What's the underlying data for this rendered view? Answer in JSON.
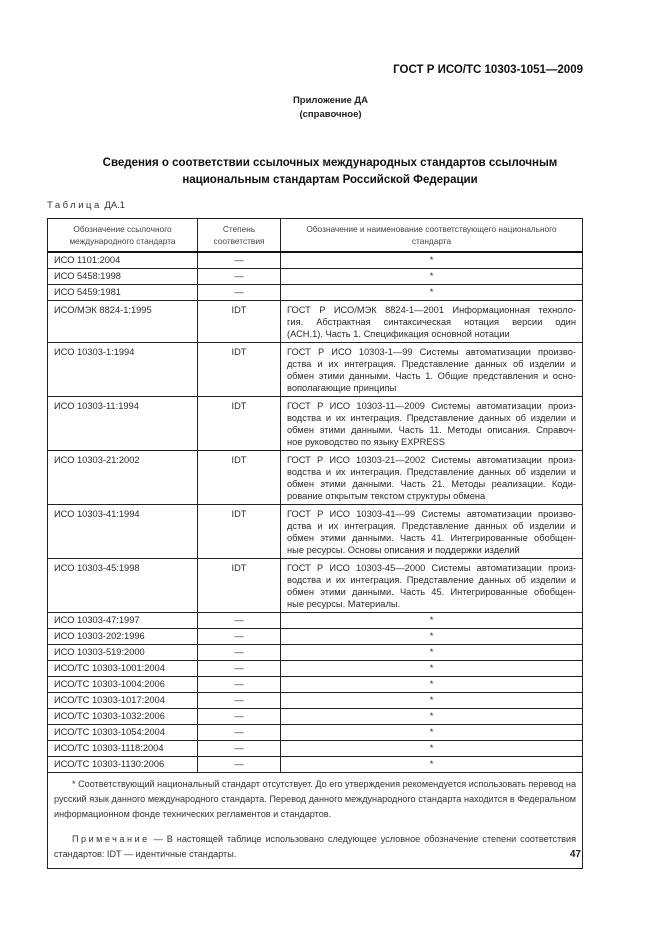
{
  "header": {
    "doc_number": "ГОСТ Р ИСО/ТС 10303-1051—2009"
  },
  "appendix": {
    "title": "Приложение ДА",
    "subtitle": "(справочное)"
  },
  "section_title": {
    "line1": "Сведения о соответствии ссылочных международных стандартов ссылочным",
    "line2": "национальным стандартам Российской Федерации"
  },
  "table_label": {
    "prefix": "Таблица",
    "number": "ДА.1"
  },
  "table": {
    "columns": [
      "Обозначение ссылочного международного стандарта",
      "Степень соответствия",
      "Обозначение и наименование соответствующего национального стандарта"
    ],
    "rows": [
      {
        "intl": "ИСО 1101:2004",
        "degree": "—",
        "national": [
          "*"
        ]
      },
      {
        "intl": "ИСО 5458:1998",
        "degree": "—",
        "national": [
          "*"
        ]
      },
      {
        "intl": "ИСО 5459:1981",
        "degree": "—",
        "national": [
          "*"
        ]
      },
      {
        "intl": "ИСО/МЭК 8824-1:1995",
        "degree": "IDT",
        "national": [
          "ГОСТ Р ИСО/МЭК 8824-1—2001 Информационная техноло-",
          "гия. Абстрактная синтаксическая нотация версии один",
          "(АСН.1). Часть 1. Спецификация основной нотации"
        ]
      },
      {
        "intl": "ИСО 10303-1:1994",
        "degree": "IDT",
        "national": [
          "ГОСТ Р ИСО 10303-1—99 Системы автоматизации произво-",
          "дства и их интеграция. Представление данных об изделии и",
          "обмен этими данными. Часть 1. Общие представления и осно-",
          "вополагающие принципы"
        ]
      },
      {
        "intl": "ИСО 10303-11:1994",
        "degree": "IDT",
        "national": [
          "ГОСТ Р ИСО 10303-11—2009 Системы автоматизации произ-",
          "водства и их интеграция. Представление данных об изделии и",
          "обмен этими данными. Часть 11. Методы описания. Справоч-",
          "ное руководство по языку EXPRESS"
        ]
      },
      {
        "intl": "ИСО 10303-21:2002",
        "degree": "IDT",
        "national": [
          "ГОСТ Р ИСО 10303-21—2002 Системы автоматизации произ-",
          "водства и их интеграция. Представление данных об изделии и",
          "обмен этими данными. Часть 21. Методы реализации. Коди-",
          "рование открытым текстом структуры обмена"
        ]
      },
      {
        "intl": "ИСО 10303-41:1994",
        "degree": "IDT",
        "national": [
          "ГОСТ Р ИСО 10303-41—99 Системы автоматизации произво-",
          "дства и их интеграция. Представление данных об изделии и",
          "обмен этими данными. Часть 41. Интегрированные обобщен-",
          "ные ресурсы. Основы описания и поддержки изделий"
        ]
      },
      {
        "intl": "ИСО 10303-45:1998",
        "degree": "IDT",
        "national": [
          "ГОСТ Р ИСО 10303-45—2000 Системы автоматизации произ-",
          "водства и их интеграция. Представление данных об изделии и",
          "обмен этими данными. Часть 45. Интегрированные обобщен-",
          "ные ресурсы. Материалы."
        ]
      },
      {
        "intl": "ИСО 10303-47:1997",
        "degree": "—",
        "national": [
          "*"
        ]
      },
      {
        "intl": "ИСО 10303-202:1996",
        "degree": "—",
        "national": [
          "*"
        ]
      },
      {
        "intl": "ИСО 10303-519:2000",
        "degree": "—",
        "national": [
          "*"
        ]
      },
      {
        "intl": "ИСО/ТС 10303-1001:2004",
        "degree": "—",
        "national": [
          "*"
        ]
      },
      {
        "intl": "ИСО/ТС 10303-1004:2006",
        "degree": "—",
        "national": [
          "*"
        ]
      },
      {
        "intl": "ИСО/ТС 10303-1017:2004",
        "degree": "—",
        "national": [
          "*"
        ]
      },
      {
        "intl": "ИСО/ТС 10303-1032:2006",
        "degree": "—",
        "national": [
          "*"
        ]
      },
      {
        "intl": "ИСО/ТС 10303-1054:2004",
        "degree": "—",
        "national": [
          "*"
        ]
      },
      {
        "intl": "ИСО/ТС 10303-1118:2004",
        "degree": "—",
        "national": [
          "*"
        ]
      },
      {
        "intl": "ИСО/ТС 10303-1130:2006",
        "degree": "—",
        "national": [
          "*"
        ]
      }
    ],
    "footnote": "* Соответствующий национальный стандарт отсутствует. До его утверждения рекомендуется использовать перевод на русский язык данного международного стандарта. Перевод данного международного стандарта находится в Федеральном информационном фонде технических регламентов и стандартов.",
    "note_label": "Примечание",
    "note_text": " — В настоящей таблице использовано следующее условное обозначение степени соответствия стандартов: IDT — идентичные стандарты."
  },
  "page_number": "47"
}
